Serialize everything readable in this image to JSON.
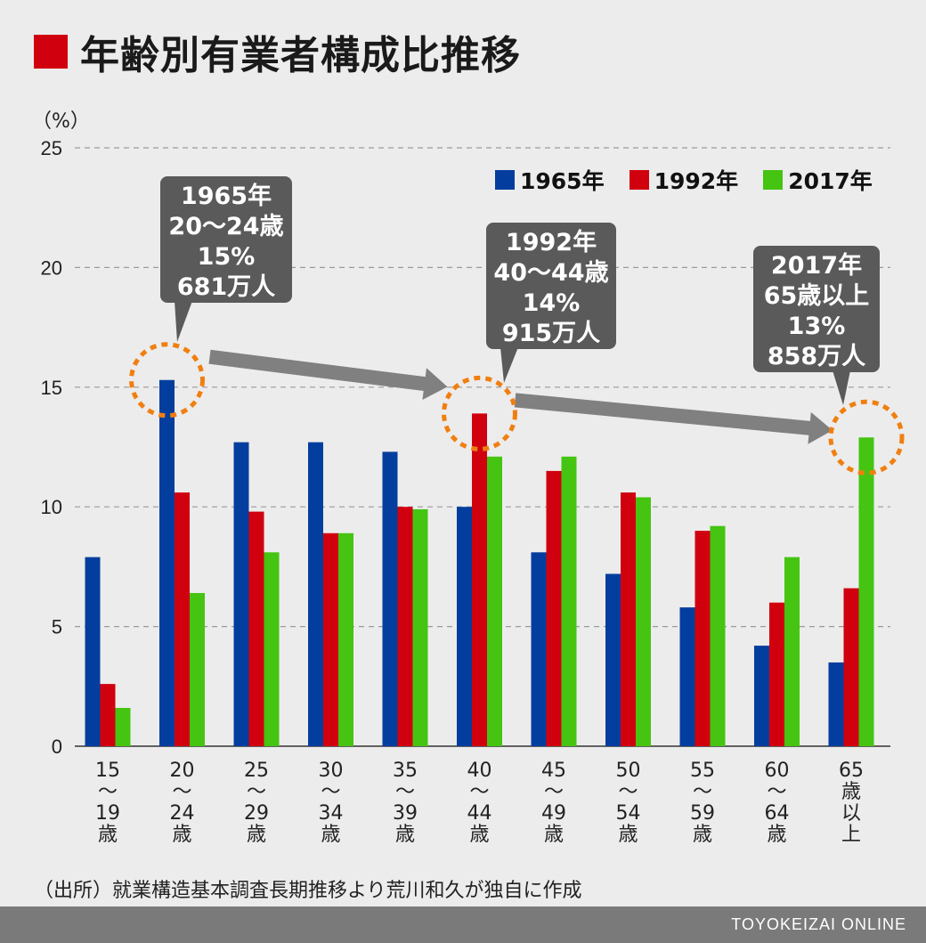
{
  "title": "年齢別有業者構成比推移",
  "unit_label": "（%）",
  "source": "（出所）就業構造基本調査長期推移より荒川和久が独自に作成",
  "footer": "TOYOKEIZAI ONLINE",
  "colors": {
    "title_mark": "#d1000f",
    "s1965": "#033e9e",
    "s1992": "#d1000f",
    "s2017": "#45c412",
    "highlight": "#f07f10",
    "arrow": "#808080"
  },
  "legend": [
    {
      "label": "1965年",
      "color": "#033e9e"
    },
    {
      "label": "1992年",
      "color": "#d1000f"
    },
    {
      "label": "2017年",
      "color": "#45c412"
    }
  ],
  "callouts": [
    {
      "lines": [
        "1965年",
        "20〜24歳",
        "15%",
        "681万人"
      ]
    },
    {
      "lines": [
        "1992年",
        "40〜44歳",
        "14%",
        "915万人"
      ]
    },
    {
      "lines": [
        "2017年",
        "65歳以上",
        "13%",
        "858万人"
      ]
    }
  ],
  "chart_data": {
    "type": "bar",
    "categories": [
      [
        "15",
        "〜",
        "19",
        "歳"
      ],
      [
        "20",
        "〜",
        "24",
        "歳"
      ],
      [
        "25",
        "〜",
        "29",
        "歳"
      ],
      [
        "30",
        "〜",
        "34",
        "歳"
      ],
      [
        "35",
        "〜",
        "39",
        "歳"
      ],
      [
        "40",
        "〜",
        "44",
        "歳"
      ],
      [
        "45",
        "〜",
        "49",
        "歳"
      ],
      [
        "50",
        "〜",
        "54",
        "歳"
      ],
      [
        "55",
        "〜",
        "59",
        "歳"
      ],
      [
        "60",
        "〜",
        "64",
        "歳"
      ],
      [
        "65",
        "歳",
        "以",
        "上"
      ]
    ],
    "series": [
      {
        "name": "1965年",
        "color": "#033e9e",
        "values": [
          7.9,
          15.3,
          12.7,
          12.7,
          12.3,
          10.0,
          8.1,
          7.2,
          5.8,
          4.2,
          3.5
        ]
      },
      {
        "name": "1992年",
        "color": "#d1000f",
        "values": [
          2.6,
          10.6,
          9.8,
          8.9,
          10.0,
          13.9,
          11.5,
          10.6,
          9.0,
          6.0,
          6.6
        ]
      },
      {
        "name": "2017年",
        "color": "#45c412",
        "values": [
          1.6,
          6.4,
          8.1,
          8.9,
          9.9,
          12.1,
          12.1,
          10.4,
          9.2,
          7.9,
          12.9
        ]
      }
    ],
    "ylim": [
      0,
      25
    ],
    "yticks": [
      0,
      5,
      10,
      15,
      20,
      25
    ],
    "grid": true,
    "legend_position": "top-right",
    "highlights": [
      {
        "series": 0,
        "category": 1
      },
      {
        "series": 1,
        "category": 5
      },
      {
        "series": 2,
        "category": 10
      }
    ]
  }
}
